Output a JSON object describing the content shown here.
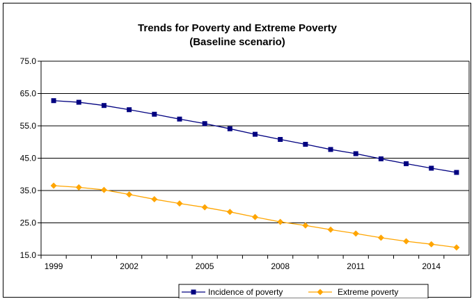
{
  "chart_data": {
    "type": "line",
    "title": "Trends for Poverty and Extreme Poverty",
    "subtitle": "(Baseline scenario)",
    "xlabel": "",
    "ylabel": "",
    "x": [
      1999,
      2000,
      2001,
      2002,
      2003,
      2004,
      2005,
      2006,
      2007,
      2008,
      2009,
      2010,
      2011,
      2012,
      2013,
      2014,
      2015
    ],
    "x_tick_labels": [
      "1999",
      "2002",
      "2005",
      "2008",
      "2011",
      "2014"
    ],
    "x_tick_values": [
      1999,
      2002,
      2005,
      2008,
      2011,
      2014
    ],
    "y_tick_labels": [
      "75.0",
      "65.0",
      "55.0",
      "45.0",
      "35.0",
      "25.0",
      "15.0"
    ],
    "y_tick_values": [
      75,
      65,
      55,
      45,
      35,
      25,
      15
    ],
    "ylim": [
      15,
      75
    ],
    "grid": "horizontal",
    "legend_position": "bottom",
    "series": [
      {
        "name": "Incidence of poverty",
        "color": "#000080",
        "marker": "square",
        "values": [
          62.8,
          62.3,
          61.3,
          60.0,
          58.6,
          57.1,
          55.7,
          54.1,
          52.4,
          50.8,
          49.3,
          47.7,
          46.4,
          44.8,
          43.3,
          41.9,
          40.6
        ]
      },
      {
        "name": "Extreme poverty",
        "color": "#FFA500",
        "marker": "diamond",
        "values": [
          36.5,
          36.0,
          35.2,
          33.8,
          32.3,
          31.0,
          29.8,
          28.4,
          26.8,
          25.3,
          24.2,
          22.9,
          21.7,
          20.4,
          19.3,
          18.4,
          17.4
        ]
      }
    ]
  }
}
